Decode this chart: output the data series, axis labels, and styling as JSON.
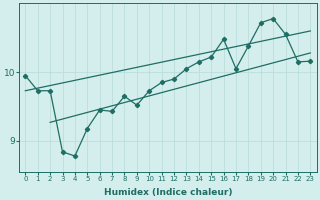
{
  "bg_color": "#d4eeed",
  "line_color": "#1e6e64",
  "grid_color": "#b8dbd9",
  "xlabel": "Humidex (Indice chaleur)",
  "xlim": [
    -0.5,
    23.5
  ],
  "ylim": [
    8.55,
    11.0
  ],
  "yticks": [
    9,
    10
  ],
  "xticks": [
    0,
    1,
    2,
    3,
    4,
    5,
    6,
    7,
    8,
    9,
    10,
    11,
    12,
    13,
    14,
    15,
    16,
    17,
    18,
    19,
    20,
    21,
    22,
    23
  ],
  "jagged_x": [
    0,
    1,
    2,
    3,
    4,
    5,
    6,
    7,
    8,
    9,
    10,
    11,
    12,
    13,
    14,
    15,
    16,
    17,
    18,
    19,
    20,
    21,
    22,
    23
  ],
  "jagged_y": [
    9.95,
    9.73,
    9.73,
    8.84,
    8.78,
    9.18,
    9.45,
    9.43,
    9.65,
    9.52,
    9.73,
    9.85,
    9.9,
    10.05,
    10.15,
    10.22,
    10.48,
    10.05,
    10.38,
    10.72,
    10.78,
    10.55,
    10.15,
    10.16
  ],
  "upper_line_x": [
    0,
    23
  ],
  "upper_line_y": [
    9.73,
    10.6
  ],
  "lower_line_x": [
    2,
    23
  ],
  "lower_line_y": [
    9.27,
    10.28
  ]
}
